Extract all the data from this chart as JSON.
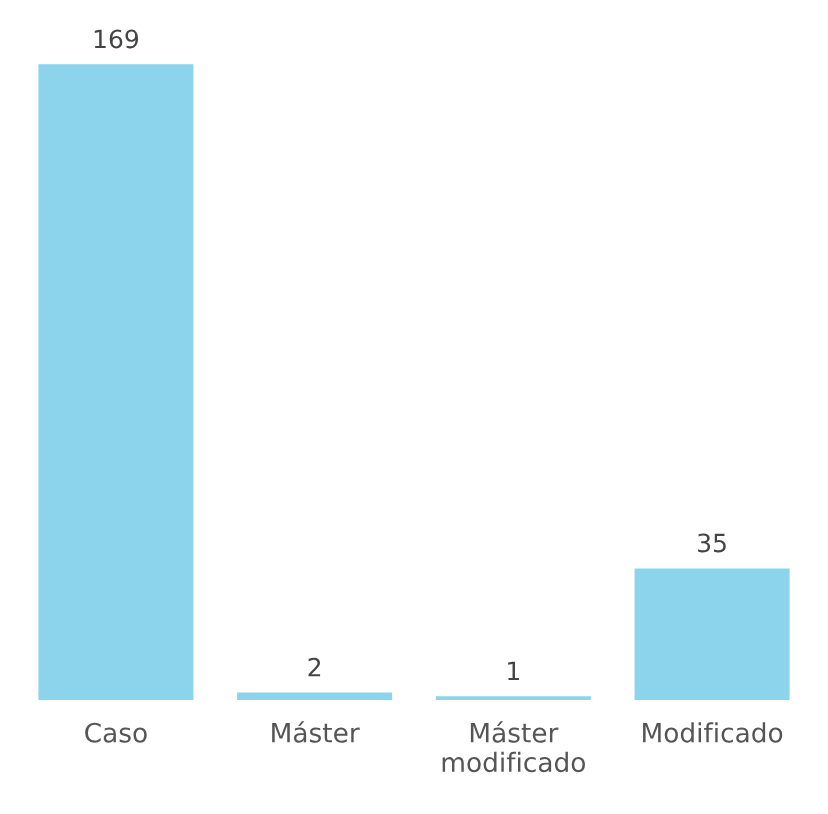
{
  "chart_data": {
    "type": "bar",
    "categories": [
      "Caso",
      "Máster",
      "Máster modificado",
      "Modificado"
    ],
    "values": [
      169,
      2,
      1,
      35
    ],
    "color": "#8cd3ec",
    "data_labels": true,
    "grid": false,
    "legend": false
  }
}
